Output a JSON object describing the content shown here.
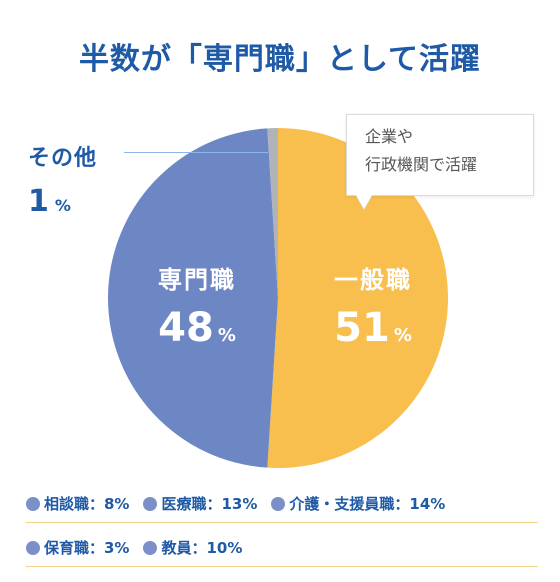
{
  "title": "半数が「専門職」として活躍",
  "chart_data": {
    "type": "pie",
    "title": "半数が「専門職」として活躍",
    "slices": [
      {
        "label": "一般職",
        "value": 51,
        "color": "#f8bf4f"
      },
      {
        "label": "専門職",
        "value": 48,
        "color": "#6d87c5"
      },
      {
        "label": "その他",
        "value": 1,
        "color": "#b0b3b8"
      }
    ]
  },
  "labels": {
    "ippan": {
      "name": "一般職",
      "value": "51",
      "unit": "%"
    },
    "senmon": {
      "name": "専門職",
      "value": "48",
      "unit": "%"
    },
    "sonota": {
      "name": "その他",
      "value": "1",
      "unit": "%"
    }
  },
  "callout": {
    "line1": "企業や",
    "line2": "行政機関で活躍"
  },
  "breakdown": {
    "row1": [
      "相談職：8%",
      "医療職：13%",
      "介護・支援員職：14%"
    ],
    "row2": [
      "保育職：3%",
      "教員：10%"
    ]
  }
}
